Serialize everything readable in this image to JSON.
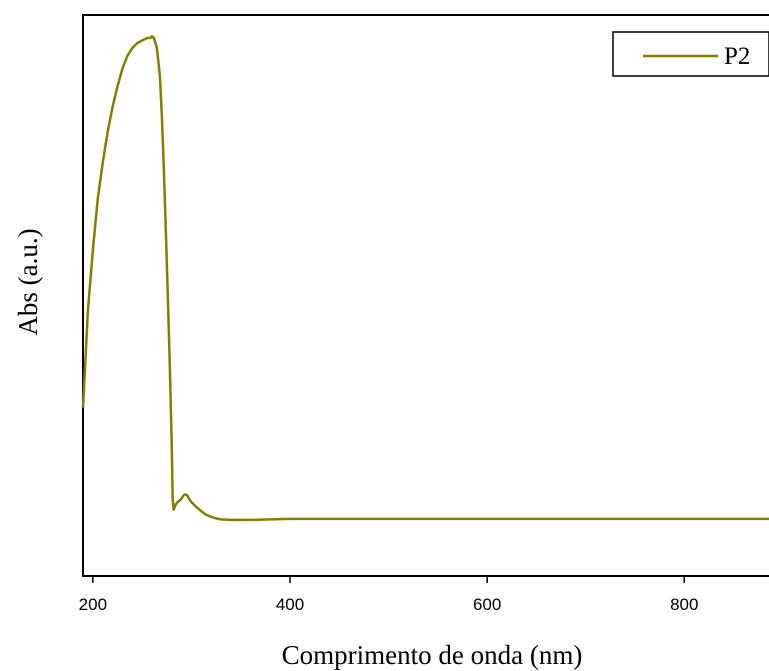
{
  "chart_data": {
    "type": "line",
    "xlabel": "Comprimento de onda (nm)",
    "ylabel": "Abs (a.u.)",
    "xlim": [
      190,
      890
    ],
    "ylim": [
      -0.1,
      1.0
    ],
    "xticks": [
      200,
      400,
      600,
      800
    ],
    "xtick_labels": [
      "200",
      "400",
      "600",
      "800"
    ],
    "yticks_shown": false,
    "grid": false,
    "legend_position": "top-right",
    "series": [
      {
        "name": "P2",
        "color": "#808000",
        "x": [
          190,
          195,
          200,
          205,
          210,
          215,
          220,
          225,
          230,
          235,
          240,
          245,
          250,
          255,
          258,
          260,
          262,
          265,
          268,
          270,
          272,
          274,
          276,
          278,
          280,
          281,
          282,
          284,
          286,
          288,
          290,
          292,
          294,
          296,
          298,
          300,
          305,
          310,
          315,
          320,
          325,
          330,
          340,
          350,
          360,
          380,
          400,
          450,
          500,
          600,
          700,
          800,
          890
        ],
        "y": [
          0.23,
          0.42,
          0.54,
          0.64,
          0.71,
          0.77,
          0.82,
          0.86,
          0.895,
          0.92,
          0.935,
          0.945,
          0.95,
          0.955,
          0.955,
          0.958,
          0.955,
          0.935,
          0.88,
          0.8,
          0.7,
          0.58,
          0.45,
          0.32,
          0.16,
          0.05,
          0.03,
          0.04,
          0.045,
          0.048,
          0.052,
          0.058,
          0.06,
          0.057,
          0.05,
          0.045,
          0.035,
          0.027,
          0.02,
          0.016,
          0.013,
          0.011,
          0.01,
          0.01,
          0.01,
          0.011,
          0.012,
          0.012,
          0.012,
          0.012,
          0.012,
          0.012,
          0.012
        ]
      }
    ]
  }
}
